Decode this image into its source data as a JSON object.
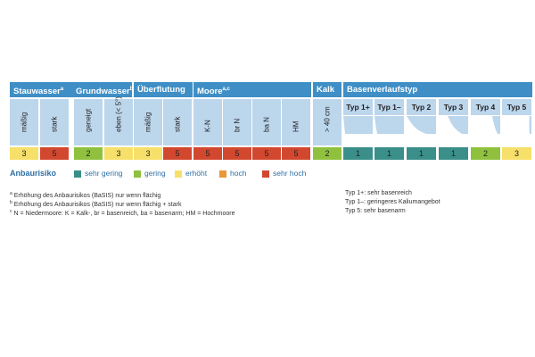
{
  "groups": [
    {
      "name": "Stauwasser",
      "sup": "a"
    },
    {
      "name": "Grundwasser",
      "sup": "b"
    },
    {
      "name": "Überflutung",
      "sup": ""
    },
    {
      "name": "Moore",
      "sup": "a,c"
    },
    {
      "name": "Kalk",
      "sup": ""
    },
    {
      "name": "Basenverlaufstyp",
      "sup": ""
    }
  ],
  "columns": [
    {
      "label": "mäßig",
      "value": "3"
    },
    {
      "label": "stark",
      "value": "5"
    },
    {
      "label": "geneigt",
      "value": "2"
    },
    {
      "label": "eben (< 5°)",
      "value": "3"
    },
    {
      "label": "mäßig",
      "value": "3"
    },
    {
      "label": "stark",
      "value": "5"
    },
    {
      "label": "K-N",
      "value": "5"
    },
    {
      "label": "br N",
      "value": "5"
    },
    {
      "label": "ba N",
      "value": "5"
    },
    {
      "label": "HM",
      "value": "5"
    },
    {
      "label": "> 40 cm",
      "value": "2"
    }
  ],
  "typ_columns": [
    {
      "label": "Typ 1+",
      "value": "1"
    },
    {
      "label": "Typ 1–",
      "value": "1"
    },
    {
      "label": "Typ 2",
      "value": "1"
    },
    {
      "label": "Typ 3",
      "value": "1"
    },
    {
      "label": "Typ 4",
      "value": "2"
    },
    {
      "label": "Typ 5",
      "value": "3"
    }
  ],
  "risk_colors": {
    "1": "#3a8f8a",
    "2": "#8fc13e",
    "3": "#f7e06a",
    "4": "#e8973a",
    "5": "#d2482f"
  },
  "legend": {
    "title": "Anbaurisiko",
    "items": [
      {
        "label": "sehr gering",
        "level": "1"
      },
      {
        "label": "gering",
        "level": "2"
      },
      {
        "label": "erhöht",
        "level": "3"
      },
      {
        "label": "hoch",
        "level": "4"
      },
      {
        "label": "sehr hoch",
        "level": "5"
      }
    ]
  },
  "footnotes": [
    {
      "sup": "a",
      "text": "Erhöhung des Anbaurisikos (BaSIS) nur wenn flächig"
    },
    {
      "sup": "b",
      "text": "Erhöhung des Anbaurisikos (BaSIS) nur wenn flächig + stark"
    },
    {
      "sup": "c",
      "text": "N = Niedermoore: K = Kalk-, br = basenreich, ba = basenarm; HM = Hochmoore"
    }
  ],
  "type_notes": [
    "Typ 1+: sehr basenreich",
    "Typ 1–: geringeres Kaliumangebot",
    "Typ 5: sehr basenarm"
  ]
}
